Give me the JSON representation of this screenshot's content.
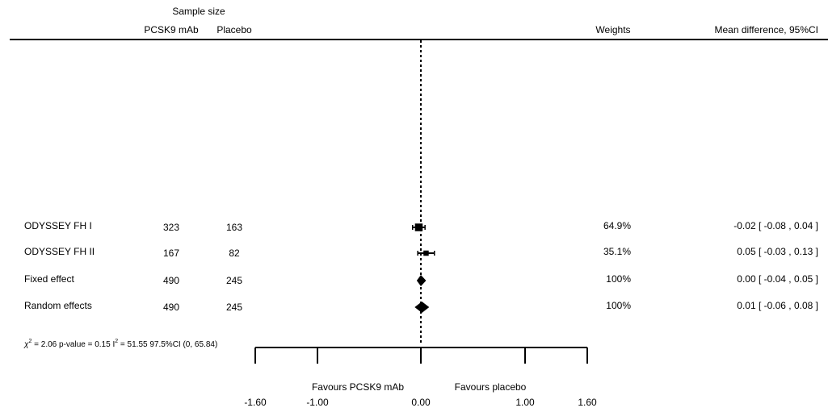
{
  "chart_data": {
    "type": "forest",
    "header": {
      "sample_size_label": "Sample size",
      "col_treatment": "PCSK9 mAb",
      "col_control": "Placebo",
      "col_weights": "Weights",
      "col_effect": "Mean difference, 95%CI"
    },
    "studies": [
      {
        "name": "ODYSSEY FH I",
        "n_treatment": "323",
        "n_control": "163",
        "weight": "64.9%",
        "effect_label": "-0.02 [ -0.08 , 0.04 ]",
        "md": -0.02,
        "lo": -0.08,
        "hi": 0.04,
        "kind": "study"
      },
      {
        "name": "ODYSSEY FH II",
        "n_treatment": "167",
        "n_control": "82",
        "weight": "35.1%",
        "effect_label": "0.05 [ -0.03 , 0.13 ]",
        "md": 0.05,
        "lo": -0.03,
        "hi": 0.13,
        "kind": "study"
      },
      {
        "name": "Fixed effect",
        "n_treatment": "490",
        "n_control": "245",
        "weight": "100%",
        "effect_label": "0.00 [ -0.04 , 0.05 ]",
        "md": 0.0,
        "lo": -0.04,
        "hi": 0.05,
        "kind": "pooled"
      },
      {
        "name": "Random effects",
        "n_treatment": "490",
        "n_control": "245",
        "weight": "100%",
        "effect_label": "0.01 [ -0.06 , 0.08 ]",
        "md": 0.01,
        "lo": -0.06,
        "hi": 0.08,
        "kind": "pooled"
      }
    ],
    "heterogeneity": {
      "chi_symbol": "χ",
      "chi_sup": "2",
      "chi_value": " = 2.06  p-value = 0.15  I",
      "i_sup": "2",
      "i_value": " = 51.55  97.5%CI (0, 65.84)"
    },
    "x_axis": {
      "ticks": [
        -1.6,
        -1.0,
        0.0,
        1.0,
        1.6
      ],
      "tick_labels": [
        "-1.60",
        "-1.00",
        "0.00",
        "1.00",
        "1.60"
      ],
      "xlim": [
        -1.6,
        1.6
      ]
    },
    "favours_left": "Favours PCSK9 mAb",
    "favours_right": "Favours placebo"
  }
}
